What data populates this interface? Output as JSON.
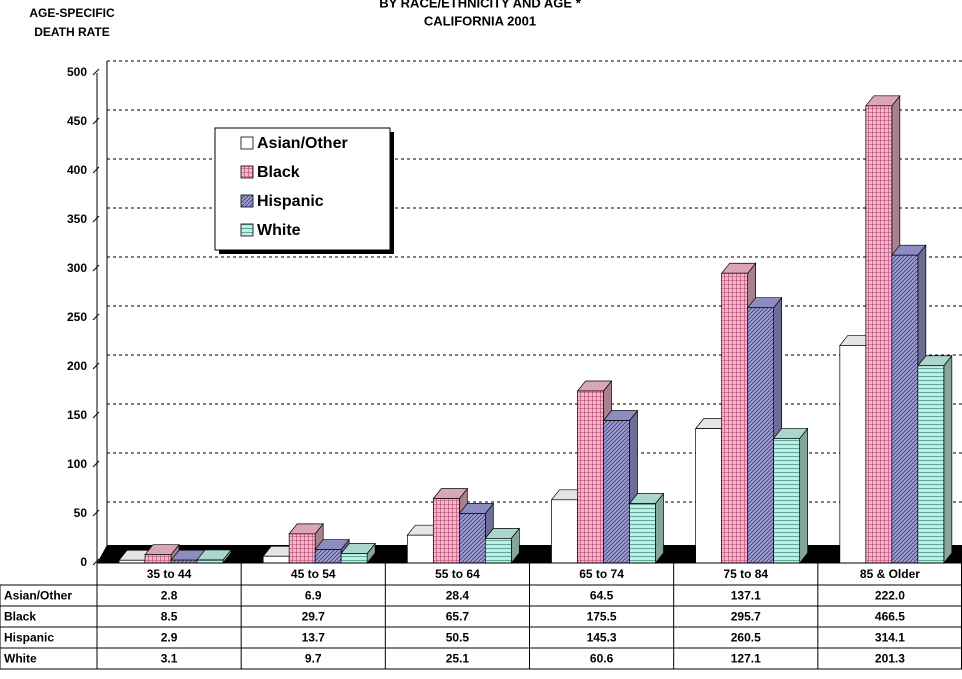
{
  "chart_data": {
    "type": "bar",
    "title": "BY RACE/ETHNICITY AND AGE *",
    "subtitle": "CALIFORNIA 2001",
    "ylabel": [
      "AGE-SPECIFIC",
      "DEATH RATE"
    ],
    "categories": [
      "35 to 44",
      "45 to 54",
      "55 to 64",
      "65 to 74",
      "75 to 84",
      "85 & Older"
    ],
    "series": [
      {
        "name": "Asian/Other",
        "color": "#ffffff",
        "values": [
          2.8,
          6.9,
          28.4,
          64.5,
          137.1,
          222.0
        ],
        "value_labels": [
          "2.8",
          "6.9",
          "28.4",
          "64.5",
          "137.1",
          "222.0"
        ]
      },
      {
        "name": "Black",
        "color": "#f2b8cc",
        "values": [
          8.5,
          29.7,
          65.7,
          175.5,
          295.7,
          466.5
        ],
        "value_labels": [
          "8.5",
          "29.7",
          "65.7",
          "175.5",
          "295.7",
          "466.5"
        ]
      },
      {
        "name": "Hispanic",
        "color": "#9c9cd8",
        "values": [
          2.9,
          13.7,
          50.5,
          145.3,
          260.5,
          314.1
        ],
        "value_labels": [
          "2.9",
          "13.7",
          "50.5",
          "145.3",
          "260.5",
          "314.1"
        ]
      },
      {
        "name": "White",
        "color": "#bfeee4",
        "values": [
          3.1,
          9.7,
          25.1,
          60.6,
          127.1,
          201.3
        ],
        "value_labels": [
          "3.1",
          "9.7",
          "25.1",
          "60.6",
          "127.1",
          "201.3"
        ]
      }
    ],
    "ylim": [
      0,
      500
    ],
    "yticks": [
      0,
      50,
      100,
      150,
      200,
      250,
      300,
      350,
      400,
      450,
      500
    ],
    "grid": true
  }
}
